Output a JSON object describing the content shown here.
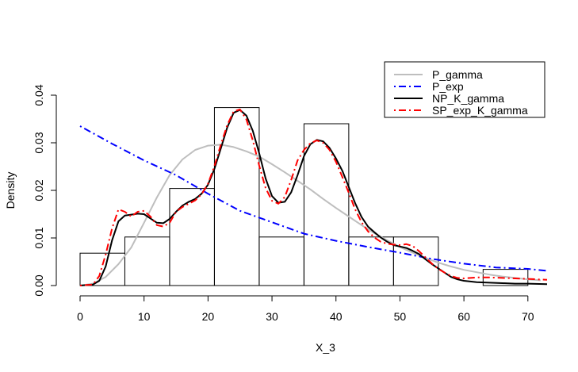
{
  "chart_data": {
    "type": "histogram",
    "xlabel": "X_3",
    "ylabel": "Density",
    "xlim": [
      0,
      73
    ],
    "ylim": [
      0,
      0.04
    ],
    "x_ticks": [
      0,
      10,
      20,
      30,
      40,
      50,
      60,
      70
    ],
    "x_tick_labels": [
      "0",
      "10",
      "20",
      "30",
      "40",
      "50",
      "60",
      "70"
    ],
    "y_ticks": [
      0,
      0.01,
      0.02,
      0.03,
      0.04
    ],
    "y_tick_labels": [
      "0.00",
      "0.01",
      "0.02",
      "0.03",
      "0.04"
    ],
    "grid": false,
    "legend_position": "top-right",
    "histogram": {
      "bins": [
        {
          "x0": 0,
          "x1": 7,
          "density": 0.0068
        },
        {
          "x0": 7,
          "x1": 14,
          "density": 0.0102
        },
        {
          "x0": 14,
          "x1": 21,
          "density": 0.0204
        },
        {
          "x0": 21,
          "x1": 28,
          "density": 0.0374
        },
        {
          "x0": 28,
          "x1": 35,
          "density": 0.0102
        },
        {
          "x0": 35,
          "x1": 42,
          "density": 0.034
        },
        {
          "x0": 42,
          "x1": 49,
          "density": 0.0102
        },
        {
          "x0": 49,
          "x1": 56,
          "density": 0.0102
        },
        {
          "x0": 56,
          "x1": 63,
          "density": 0.0
        },
        {
          "x0": 63,
          "x1": 70,
          "density": 0.0034
        }
      ]
    },
    "series": [
      {
        "name": "P_gamma",
        "color": "#bebebe",
        "dash": "solid",
        "width": 2,
        "points": [
          [
            0,
            0
          ],
          [
            2,
            0.0004
          ],
          [
            4,
            0.0018
          ],
          [
            6,
            0.0045
          ],
          [
            8,
            0.008
          ],
          [
            10,
            0.0132
          ],
          [
            12,
            0.0185
          ],
          [
            14,
            0.0232
          ],
          [
            16,
            0.0265
          ],
          [
            18,
            0.0285
          ],
          [
            20,
            0.0294
          ],
          [
            22,
            0.0296
          ],
          [
            24,
            0.0291
          ],
          [
            26,
            0.0282
          ],
          [
            28,
            0.0271
          ],
          [
            30,
            0.0255
          ],
          [
            32,
            0.0238
          ],
          [
            34,
            0.022
          ],
          [
            36,
            0.0202
          ],
          [
            38,
            0.0182
          ],
          [
            40,
            0.0163
          ],
          [
            42,
            0.0145
          ],
          [
            44,
            0.0127
          ],
          [
            46,
            0.011
          ],
          [
            48,
            0.0095
          ],
          [
            50,
            0.0081
          ],
          [
            52,
            0.0069
          ],
          [
            54,
            0.0058
          ],
          [
            56,
            0.0048
          ],
          [
            58,
            0.004
          ],
          [
            60,
            0.0033
          ],
          [
            62,
            0.0028
          ],
          [
            64,
            0.0023
          ],
          [
            66,
            0.0019
          ],
          [
            68,
            0.0016
          ],
          [
            70,
            0.0013
          ],
          [
            72,
            0.0011
          ]
        ]
      },
      {
        "name": "P_exp",
        "color": "#0000ff",
        "dash": "dotdash",
        "width": 2,
        "points": [
          [
            0,
            0.0335
          ],
          [
            5,
            0.0298
          ],
          [
            10,
            0.0263
          ],
          [
            15,
            0.0232
          ],
          [
            20,
            0.0193
          ],
          [
            25,
            0.0157
          ],
          [
            30,
            0.0133
          ],
          [
            35,
            0.0109
          ],
          [
            40,
            0.0094
          ],
          [
            45,
            0.0081
          ],
          [
            50,
            0.0069
          ],
          [
            55,
            0.0056
          ],
          [
            60,
            0.0046
          ],
          [
            65,
            0.0038
          ],
          [
            70,
            0.0035
          ],
          [
            73,
            0.0031
          ]
        ]
      },
      {
        "name": "NP_K_gamma",
        "color": "#000000",
        "dash": "solid",
        "width": 2,
        "points": [
          [
            0,
            0
          ],
          [
            2,
            0.0002
          ],
          [
            3,
            0.001
          ],
          [
            4,
            0.004
          ],
          [
            5,
            0.0095
          ],
          [
            6,
            0.0135
          ],
          [
            7,
            0.0147
          ],
          [
            8,
            0.0149
          ],
          [
            9,
            0.0151
          ],
          [
            10,
            0.015
          ],
          [
            11,
            0.0141
          ],
          [
            12,
            0.0132
          ],
          [
            13,
            0.0131
          ],
          [
            14,
            0.014
          ],
          [
            15,
            0.0155
          ],
          [
            16,
            0.0168
          ],
          [
            17,
            0.0176
          ],
          [
            18,
            0.0182
          ],
          [
            19,
            0.0193
          ],
          [
            20,
            0.0212
          ],
          [
            21,
            0.0245
          ],
          [
            22,
            0.0288
          ],
          [
            23,
            0.0332
          ],
          [
            24,
            0.0363
          ],
          [
            25,
            0.0369
          ],
          [
            26,
            0.0357
          ],
          [
            27,
            0.0325
          ],
          [
            28,
            0.0278
          ],
          [
            29,
            0.0225
          ],
          [
            30,
            0.0188
          ],
          [
            31,
            0.0174
          ],
          [
            32,
            0.0176
          ],
          [
            33,
            0.0196
          ],
          [
            34,
            0.0232
          ],
          [
            35,
            0.0272
          ],
          [
            36,
            0.0297
          ],
          [
            37,
            0.0306
          ],
          [
            38,
            0.0303
          ],
          [
            39,
            0.0289
          ],
          [
            40,
            0.0267
          ],
          [
            41,
            0.0241
          ],
          [
            42,
            0.0207
          ],
          [
            43,
            0.0173
          ],
          [
            44,
            0.0144
          ],
          [
            45,
            0.0124
          ],
          [
            46,
            0.0112
          ],
          [
            47,
            0.0101
          ],
          [
            48,
            0.0092
          ],
          [
            49,
            0.0085
          ],
          [
            50,
            0.0082
          ],
          [
            51,
            0.0079
          ],
          [
            52,
            0.0073
          ],
          [
            53,
            0.0066
          ],
          [
            54,
            0.0055
          ],
          [
            55,
            0.0045
          ],
          [
            56,
            0.0036
          ],
          [
            57,
            0.0027
          ],
          [
            58,
            0.0018
          ],
          [
            59,
            0.0013
          ],
          [
            60,
            0.001
          ],
          [
            62,
            0.0007
          ],
          [
            64,
            0.0006
          ],
          [
            66,
            0.0005
          ],
          [
            68,
            0.0004
          ],
          [
            70,
            0.0004
          ],
          [
            73,
            0.0003
          ]
        ]
      },
      {
        "name": "SP_exp_K_gamma",
        "color": "#ff0000",
        "dash": "dotdash",
        "width": 2,
        "points": [
          [
            0,
            0
          ],
          [
            2,
            0.0002
          ],
          [
            3,
            0.002
          ],
          [
            4,
            0.0065
          ],
          [
            5,
            0.012
          ],
          [
            6,
            0.016
          ],
          [
            7,
            0.0155
          ],
          [
            8,
            0.0145
          ],
          [
            9,
            0.0155
          ],
          [
            10,
            0.0157
          ],
          [
            11,
            0.0145
          ],
          [
            12,
            0.0127
          ],
          [
            13,
            0.0124
          ],
          [
            14,
            0.0132
          ],
          [
            15,
            0.0155
          ],
          [
            16,
            0.0165
          ],
          [
            17,
            0.0172
          ],
          [
            18,
            0.0179
          ],
          [
            19,
            0.0192
          ],
          [
            20,
            0.0214
          ],
          [
            21,
            0.0251
          ],
          [
            22,
            0.0296
          ],
          [
            23,
            0.0337
          ],
          [
            24,
            0.0366
          ],
          [
            25,
            0.037
          ],
          [
            26,
            0.0349
          ],
          [
            27,
            0.0305
          ],
          [
            28,
            0.0252
          ],
          [
            29,
            0.0205
          ],
          [
            30,
            0.0178
          ],
          [
            31,
            0.0172
          ],
          [
            32,
            0.0186
          ],
          [
            33,
            0.0222
          ],
          [
            34,
            0.0263
          ],
          [
            35,
            0.0285
          ],
          [
            36,
            0.0299
          ],
          [
            37,
            0.0305
          ],
          [
            38,
            0.03
          ],
          [
            39,
            0.0285
          ],
          [
            40,
            0.026
          ],
          [
            41,
            0.0228
          ],
          [
            42,
            0.0195
          ],
          [
            43,
            0.016
          ],
          [
            44,
            0.0133
          ],
          [
            45,
            0.0114
          ],
          [
            46,
            0.0101
          ],
          [
            47,
            0.0092
          ],
          [
            48,
            0.0088
          ],
          [
            49,
            0.0086
          ],
          [
            50,
            0.0085
          ],
          [
            51,
            0.0087
          ],
          [
            52,
            0.0083
          ],
          [
            53,
            0.0072
          ],
          [
            54,
            0.0059
          ],
          [
            55,
            0.0046
          ],
          [
            56,
            0.0035
          ],
          [
            57,
            0.0027
          ],
          [
            58,
            0.002
          ],
          [
            59,
            0.0016
          ],
          [
            60,
            0.0015
          ],
          [
            62,
            0.0017
          ],
          [
            64,
            0.0017
          ],
          [
            66,
            0.0016
          ],
          [
            68,
            0.0015
          ],
          [
            70,
            0.0014
          ],
          [
            73,
            0.0012
          ]
        ]
      }
    ]
  }
}
